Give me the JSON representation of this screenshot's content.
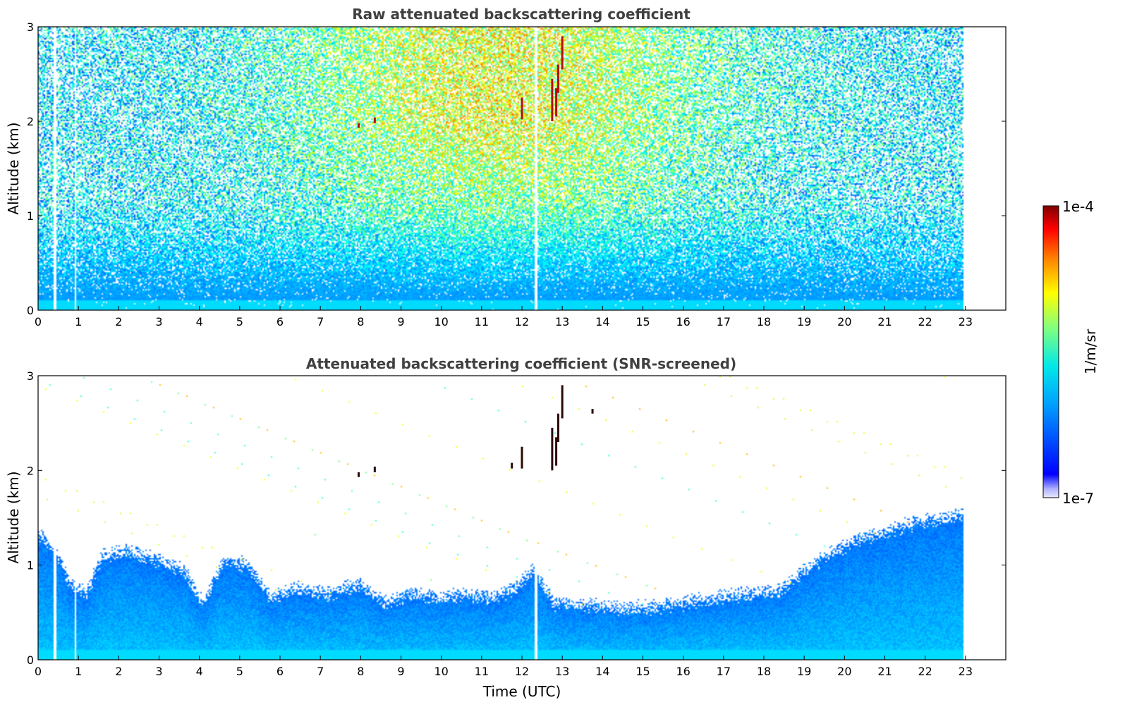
{
  "chart_data": [
    {
      "type": "heatmap",
      "title": "Raw attenuated backscattering coefficient",
      "xlabel": "",
      "ylabel": "Altitude (km)",
      "xlim": [
        0,
        24
      ],
      "ylim": [
        0,
        3
      ],
      "x_ticks": [
        "0",
        "1",
        "2",
        "3",
        "4",
        "5",
        "6",
        "7",
        "8",
        "9",
        "10",
        "11",
        "12",
        "13",
        "14",
        "15",
        "16",
        "17",
        "18",
        "19",
        "20",
        "21",
        "22",
        "23"
      ],
      "y_ticks": [
        "0",
        "1",
        "2",
        "3"
      ],
      "data_x_range": [
        0,
        22.95
      ],
      "screened": false,
      "gap_times": [
        0.42,
        0.92,
        12.35
      ],
      "cloud_features": [
        {
          "time": 7.95,
          "alt_range": [
            1.93,
            1.98
          ]
        },
        {
          "time": 8.35,
          "alt_range": [
            1.98,
            2.04
          ]
        },
        {
          "time": 12.0,
          "alt_range": [
            2.02,
            2.25
          ]
        },
        {
          "time": 12.75,
          "alt_range": [
            2.0,
            2.45
          ]
        },
        {
          "time": 12.85,
          "alt_range": [
            2.05,
            2.35
          ]
        },
        {
          "time": 12.9,
          "alt_range": [
            2.3,
            2.6
          ]
        },
        {
          "time": 13.0,
          "alt_range": [
            2.55,
            2.9
          ]
        }
      ]
    },
    {
      "type": "heatmap",
      "title": "Attenuated backscattering coefficient (SNR-screened)",
      "xlabel": "Time (UTC)",
      "ylabel": "Altitude (km)",
      "xlim": [
        0,
        24
      ],
      "ylim": [
        0,
        3
      ],
      "x_ticks": [
        "0",
        "1",
        "2",
        "3",
        "4",
        "5",
        "6",
        "7",
        "8",
        "9",
        "10",
        "11",
        "12",
        "13",
        "14",
        "15",
        "16",
        "17",
        "18",
        "19",
        "20",
        "21",
        "22",
        "23"
      ],
      "y_ticks": [
        "0",
        "1",
        "2",
        "3"
      ],
      "data_x_range": [
        0,
        22.95
      ],
      "screened": true,
      "gap_times": [
        0.42,
        0.92,
        12.35
      ],
      "boundary_layer_top": [
        {
          "t": 0,
          "h": 1.35
        },
        {
          "t": 0.5,
          "h": 1.1
        },
        {
          "t": 0.8,
          "h": 0.8
        },
        {
          "t": 1.2,
          "h": 0.7
        },
        {
          "t": 1.6,
          "h": 1.1
        },
        {
          "t": 2.2,
          "h": 1.15
        },
        {
          "t": 3.0,
          "h": 1.05
        },
        {
          "t": 3.6,
          "h": 0.95
        },
        {
          "t": 4.1,
          "h": 0.6
        },
        {
          "t": 4.6,
          "h": 1.05
        },
        {
          "t": 5.2,
          "h": 1.0
        },
        {
          "t": 5.8,
          "h": 0.65
        },
        {
          "t": 6.4,
          "h": 0.75
        },
        {
          "t": 7.2,
          "h": 0.7
        },
        {
          "t": 8.0,
          "h": 0.8
        },
        {
          "t": 8.6,
          "h": 0.6
        },
        {
          "t": 9.2,
          "h": 0.7
        },
        {
          "t": 10.0,
          "h": 0.65
        },
        {
          "t": 10.6,
          "h": 0.7
        },
        {
          "t": 11.2,
          "h": 0.65
        },
        {
          "t": 11.8,
          "h": 0.75
        },
        {
          "t": 12.3,
          "h": 0.95
        },
        {
          "t": 12.8,
          "h": 0.6
        },
        {
          "t": 13.6,
          "h": 0.58
        },
        {
          "t": 14.4,
          "h": 0.55
        },
        {
          "t": 15.2,
          "h": 0.55
        },
        {
          "t": 16.0,
          "h": 0.6
        },
        {
          "t": 16.8,
          "h": 0.65
        },
        {
          "t": 17.6,
          "h": 0.7
        },
        {
          "t": 18.4,
          "h": 0.72
        },
        {
          "t": 19.0,
          "h": 0.95
        },
        {
          "t": 19.6,
          "h": 1.1
        },
        {
          "t": 20.2,
          "h": 1.25
        },
        {
          "t": 21.0,
          "h": 1.35
        },
        {
          "t": 21.8,
          "h": 1.45
        },
        {
          "t": 22.5,
          "h": 1.5
        },
        {
          "t": 22.95,
          "h": 1.55
        }
      ],
      "cloud_features": [
        {
          "time": 7.95,
          "alt_range": [
            1.93,
            1.98
          ]
        },
        {
          "time": 8.35,
          "alt_range": [
            1.98,
            2.04
          ]
        },
        {
          "time": 11.75,
          "alt_range": [
            2.02,
            2.08
          ]
        },
        {
          "time": 12.0,
          "alt_range": [
            2.02,
            2.25
          ]
        },
        {
          "time": 12.75,
          "alt_range": [
            2.0,
            2.45
          ]
        },
        {
          "time": 12.85,
          "alt_range": [
            2.05,
            2.35
          ]
        },
        {
          "time": 12.9,
          "alt_range": [
            2.3,
            2.6
          ]
        },
        {
          "time": 13.0,
          "alt_range": [
            2.55,
            2.9
          ]
        },
        {
          "time": 13.75,
          "alt_range": [
            2.6,
            2.65
          ]
        }
      ]
    }
  ],
  "colorbar": {
    "label": "1/m/sr",
    "max_label": "1e-4",
    "min_label": "1e-7",
    "scale": "log",
    "colormap": "jet",
    "range": [
      1e-07,
      0.0001
    ]
  }
}
